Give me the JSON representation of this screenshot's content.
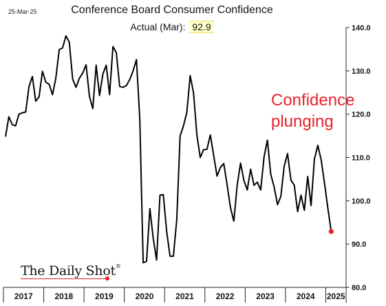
{
  "header": {
    "date": "25-Mar-25",
    "title": "Conference Board Consumer Confidence",
    "actual_label": "Actual (Mar):",
    "actual_value": "92.9"
  },
  "annotation": "Confidence plunging",
  "logo": {
    "text": "The Daily Shot",
    "mark": "®"
  },
  "colors": {
    "line": "#000000",
    "last_point": "#e8212b",
    "annotation": "#e8212b",
    "highlight": "#ffffcc"
  },
  "chart_data": {
    "type": "line",
    "title": "Conference Board Consumer Confidence",
    "xlabel": "",
    "ylabel": "",
    "ylim": [
      80,
      140
    ],
    "y_ticks": [
      80,
      90,
      100,
      110,
      120,
      130,
      140
    ],
    "y_tick_labels": [
      "80.0",
      "90.0",
      "100.0",
      "110.0",
      "120.0",
      "130.0",
      "140.0"
    ],
    "y_axis_side": "right",
    "grid": false,
    "x_labels": [
      "2017",
      "2018",
      "2019",
      "2020",
      "2021",
      "2022",
      "2023",
      "2024",
      "2025"
    ],
    "x_start": "2017-01",
    "last_point_highlight": true,
    "series": [
      {
        "values": [
          114.8,
          119.4,
          117.6,
          117.3,
          120.0,
          120.3,
          120.5,
          126.4,
          128.7,
          123.0,
          124.0,
          129.9,
          127.4,
          126.9,
          124.5,
          128.4,
          134.9,
          135.3,
          138.1,
          136.6,
          128.1,
          126.2,
          128.3,
          129.5,
          131.4,
          124.1,
          121.3,
          131.3,
          124.3,
          129.3,
          131.3,
          124.5,
          135.6,
          134.2,
          126.4,
          126.2,
          126.6,
          128.0,
          130.0,
          132.6,
          118.8,
          85.7,
          86.0,
          98.2,
          91.3,
          86.3,
          101.3,
          101.4,
          92.9,
          87.2,
          87.2,
          95.6,
          115.0,
          117.3,
          120.4,
          128.9,
          124.9,
          115.2,
          110.0,
          111.8,
          111.9,
          115.2,
          110.5,
          105.7,
          107.7,
          108.6,
          103.7,
          98.4,
          95.3,
          103.6,
          108.7,
          104.7,
          102.5,
          107.3,
          103.6,
          104.3,
          102.5,
          110.1,
          114.0,
          106.1,
          103.2,
          99.1,
          101.0,
          108.0,
          110.9,
          104.8,
          103.6,
          97.5,
          101.3,
          97.8,
          105.6,
          98.9,
          109.6,
          112.8,
          109.5,
          104.1,
          98.3,
          92.9
        ]
      }
    ]
  }
}
